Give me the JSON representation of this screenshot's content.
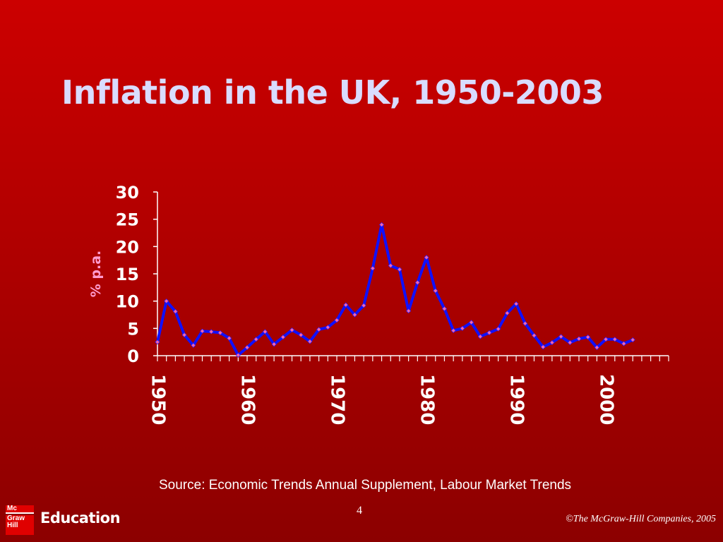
{
  "slide": {
    "title": "Inflation in the UK, 1950-2003",
    "source": "Source: Economic Trends Annual Supplement, Labour Market Trends",
    "page_number": "4",
    "logo_lines": [
      "Mc",
      "Graw",
      "Hill"
    ],
    "brand": "Education",
    "copyright": "©The McGraw-Hill Companies, 2005"
  },
  "colors": {
    "background": "#c00000",
    "title": "#d9dcff",
    "line": "#1010ff",
    "marker": "#ff66aa",
    "axis": "#ffffff"
  },
  "chart_data": {
    "type": "line",
    "title": "",
    "xlabel": "",
    "ylabel": "% p.a.",
    "ylim": [
      0,
      30
    ],
    "yticks": [
      0,
      5,
      10,
      15,
      20,
      25,
      30
    ],
    "xlim": [
      1950,
      2007
    ],
    "xtick_labels": [
      "1950",
      "1960",
      "1970",
      "1980",
      "1990",
      "2000"
    ],
    "grid": false,
    "legend": "none",
    "x": [
      1950,
      1951,
      1952,
      1953,
      1954,
      1955,
      1956,
      1957,
      1958,
      1959,
      1960,
      1961,
      1962,
      1963,
      1964,
      1965,
      1966,
      1967,
      1968,
      1969,
      1970,
      1971,
      1972,
      1973,
      1974,
      1975,
      1976,
      1977,
      1978,
      1979,
      1980,
      1981,
      1982,
      1983,
      1984,
      1985,
      1986,
      1987,
      1988,
      1989,
      1990,
      1991,
      1992,
      1993,
      1994,
      1995,
      1996,
      1997,
      1998,
      1999,
      2000,
      2001,
      2002,
      2003
    ],
    "series": [
      {
        "values": [
          2.5,
          10.0,
          8.1,
          3.8,
          1.9,
          4.5,
          4.4,
          4.2,
          3.2,
          0.1,
          1.5,
          3.0,
          4.4,
          2.1,
          3.4,
          4.7,
          3.8,
          2.6,
          4.8,
          5.2,
          6.5,
          9.3,
          7.5,
          9.2,
          16.0,
          24.0,
          16.5,
          15.8,
          8.2,
          13.4,
          18.0,
          11.9,
          8.6,
          4.6,
          5.0,
          6.1,
          3.5,
          4.2,
          4.9,
          7.8,
          9.5,
          5.9,
          3.7,
          1.6,
          2.4,
          3.5,
          2.4,
          3.1,
          3.4,
          1.5,
          3.0,
          3.0,
          2.2,
          2.9
        ]
      }
    ]
  }
}
